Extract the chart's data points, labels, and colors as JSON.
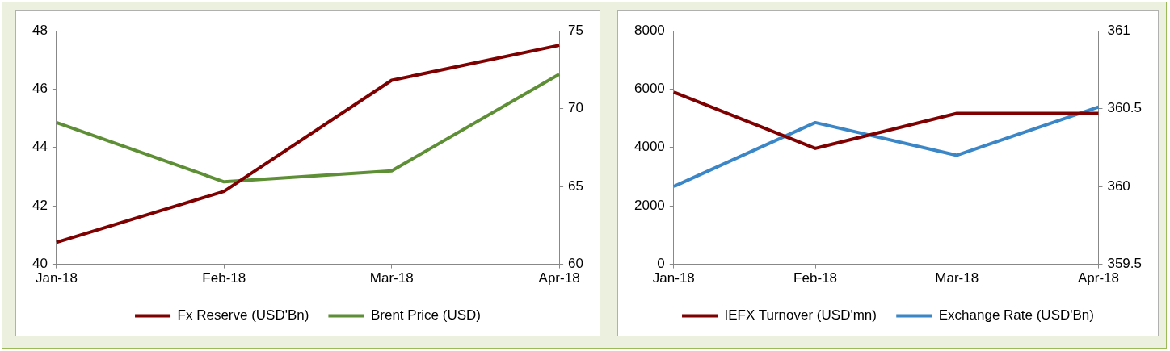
{
  "chart_data": [
    {
      "type": "line",
      "categories": [
        "Jan-18",
        "Feb-18",
        "Mar-18",
        "Apr-18"
      ],
      "series": [
        {
          "name": "Fx Reserve (USD'Bn)",
          "color": "#7f0000",
          "values": [
            40.75,
            42.5,
            46.3,
            47.5
          ]
        },
        {
          "name": "Brent Price (USD)",
          "color": "#5e8f36",
          "values": [
            69.1,
            65.3,
            66.0,
            72.2
          ],
          "axis": "y2"
        }
      ],
      "ylim": [
        40,
        48
      ],
      "yticks": [
        40,
        42,
        44,
        46,
        48
      ],
      "y2lim": [
        60,
        75
      ],
      "y2ticks": [
        60,
        65,
        70,
        75
      ],
      "grid": false,
      "legend": "bottom",
      "marker": "none"
    },
    {
      "type": "line",
      "categories": [
        "Jan-18",
        "Feb-18",
        "Mar-18",
        "Apr-18"
      ],
      "series": [
        {
          "name": "IEFX Turnover (USD'mn)",
          "color": "#7f0000",
          "values": [
            5900,
            3970,
            5170,
            5170
          ]
        },
        {
          "name": "Exchange Rate (USD'Bn)",
          "color": "#3a86c6",
          "values": [
            360.0,
            360.41,
            360.2,
            360.51
          ],
          "axis": "y2"
        }
      ],
      "ylim": [
        0,
        8000
      ],
      "yticks": [
        0,
        2000,
        4000,
        6000,
        8000
      ],
      "y2lim": [
        359.5,
        361
      ],
      "y2ticks": [
        359.5,
        360,
        360.5,
        361
      ],
      "grid": false,
      "legend": "bottom",
      "marker": "none"
    }
  ]
}
